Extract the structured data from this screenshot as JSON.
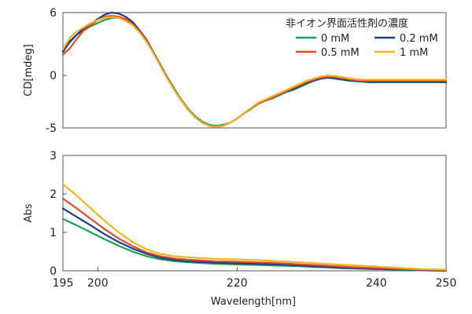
{
  "chart_data": [
    {
      "type": "line",
      "panel": "top",
      "xlabel": "",
      "ylabel": "CD[mdeg]",
      "xlim": [
        195,
        250
      ],
      "ylim": [
        -5,
        6
      ],
      "yticks": [
        6,
        0,
        -5
      ],
      "grid": false,
      "legend_title": "非イオン界面活性剤の濃度",
      "legend_position": "top-right",
      "series": [
        {
          "name": "0 mM",
          "color": "#1aa05a",
          "x": [
            195,
            196,
            197,
            198,
            199,
            200,
            201,
            202,
            203,
            204,
            205,
            206,
            207,
            208,
            209,
            210,
            211,
            212,
            213,
            214,
            215,
            216,
            217,
            218,
            219,
            220,
            221,
            222,
            223,
            224,
            225,
            226,
            227,
            228,
            229,
            230,
            231,
            232,
            233,
            234,
            235,
            236,
            237,
            238,
            239,
            240,
            241,
            242,
            243,
            244,
            245,
            246,
            247,
            248,
            249,
            250
          ],
          "y": [
            2.2,
            3.3,
            3.9,
            4.3,
            4.7,
            5.0,
            5.3,
            5.5,
            5.5,
            5.3,
            4.9,
            4.2,
            3.3,
            2.2,
            1.0,
            -0.2,
            -1.3,
            -2.3,
            -3.2,
            -3.9,
            -4.4,
            -4.7,
            -4.8,
            -4.7,
            -4.5,
            -4.1,
            -3.6,
            -3.2,
            -2.7,
            -2.4,
            -2.2,
            -1.9,
            -1.6,
            -1.4,
            -1.1,
            -0.8,
            -0.5,
            -0.3,
            -0.2,
            -0.3,
            -0.4,
            -0.5,
            -0.55,
            -0.6,
            -0.65,
            -0.65,
            -0.65,
            -0.65,
            -0.65,
            -0.65,
            -0.65,
            -0.65,
            -0.65,
            -0.65,
            -0.65,
            -0.65
          ]
        },
        {
          "name": "0.2 mM",
          "color": "#1f3b8c",
          "x": [
            195,
            196,
            197,
            198,
            199,
            200,
            201,
            202,
            203,
            204,
            205,
            206,
            207,
            208,
            209,
            210,
            211,
            212,
            213,
            214,
            215,
            216,
            217,
            218,
            219,
            220,
            221,
            222,
            223,
            224,
            225,
            226,
            227,
            228,
            229,
            230,
            231,
            232,
            233,
            234,
            235,
            236,
            237,
            238,
            239,
            240,
            241,
            242,
            243,
            244,
            245,
            246,
            247,
            248,
            249,
            250
          ],
          "y": [
            2.3,
            3.2,
            3.9,
            4.5,
            4.9,
            5.4,
            5.8,
            6.0,
            5.9,
            5.6,
            5.1,
            4.3,
            3.4,
            2.2,
            1.0,
            -0.2,
            -1.3,
            -2.4,
            -3.3,
            -4.0,
            -4.5,
            -4.8,
            -4.9,
            -4.8,
            -4.5,
            -4.1,
            -3.6,
            -3.1,
            -2.7,
            -2.4,
            -2.1,
            -1.8,
            -1.5,
            -1.3,
            -1.0,
            -0.7,
            -0.5,
            -0.3,
            -0.2,
            -0.25,
            -0.35,
            -0.45,
            -0.5,
            -0.55,
            -0.6,
            -0.6,
            -0.6,
            -0.6,
            -0.6,
            -0.6,
            -0.6,
            -0.6,
            -0.6,
            -0.6,
            -0.6,
            -0.6
          ]
        },
        {
          "name": "0.5 mM",
          "color": "#e04a2a",
          "x": [
            195,
            196,
            197,
            198,
            199,
            200,
            201,
            202,
            203,
            204,
            205,
            206,
            207,
            208,
            209,
            210,
            211,
            212,
            213,
            214,
            215,
            216,
            217,
            218,
            219,
            220,
            221,
            222,
            223,
            224,
            225,
            226,
            227,
            228,
            229,
            230,
            231,
            232,
            233,
            234,
            235,
            236,
            237,
            238,
            239,
            240,
            241,
            242,
            243,
            244,
            245,
            246,
            247,
            248,
            249,
            250
          ],
          "y": [
            2.0,
            2.6,
            3.5,
            4.3,
            4.8,
            5.3,
            5.6,
            5.7,
            5.6,
            5.4,
            4.9,
            4.2,
            3.3,
            2.1,
            0.9,
            -0.3,
            -1.4,
            -2.4,
            -3.3,
            -4.0,
            -4.5,
            -4.8,
            -4.9,
            -4.8,
            -4.5,
            -4.1,
            -3.6,
            -3.1,
            -2.7,
            -2.4,
            -2.1,
            -1.8,
            -1.5,
            -1.2,
            -0.9,
            -0.6,
            -0.4,
            -0.2,
            -0.1,
            -0.15,
            -0.25,
            -0.35,
            -0.45,
            -0.5,
            -0.5,
            -0.5,
            -0.5,
            -0.5,
            -0.5,
            -0.5,
            -0.5,
            -0.5,
            -0.5,
            -0.5,
            -0.5,
            -0.5
          ]
        },
        {
          "name": "1 mM",
          "color": "#f5b324",
          "x": [
            195,
            196,
            197,
            198,
            199,
            200,
            201,
            202,
            203,
            204,
            205,
            206,
            207,
            208,
            209,
            210,
            211,
            212,
            213,
            214,
            215,
            216,
            217,
            218,
            219,
            220,
            221,
            222,
            223,
            224,
            225,
            226,
            227,
            228,
            229,
            230,
            231,
            232,
            233,
            234,
            235,
            236,
            237,
            238,
            239,
            240,
            241,
            242,
            243,
            244,
            245,
            246,
            247,
            248,
            249,
            250
          ],
          "y": [
            2.5,
            3.6,
            4.2,
            4.6,
            5.0,
            5.3,
            5.5,
            5.6,
            5.5,
            5.2,
            4.8,
            4.1,
            3.2,
            2.1,
            0.9,
            -0.3,
            -1.4,
            -2.4,
            -3.3,
            -4.0,
            -4.5,
            -4.8,
            -4.9,
            -4.8,
            -4.5,
            -4.1,
            -3.6,
            -3.1,
            -2.6,
            -2.3,
            -2.0,
            -1.7,
            -1.4,
            -1.1,
            -0.8,
            -0.5,
            -0.3,
            -0.1,
            0.0,
            -0.05,
            -0.15,
            -0.25,
            -0.35,
            -0.4,
            -0.4,
            -0.4,
            -0.4,
            -0.4,
            -0.4,
            -0.4,
            -0.4,
            -0.4,
            -0.4,
            -0.4,
            -0.4,
            -0.4
          ]
        }
      ]
    },
    {
      "type": "line",
      "panel": "bottom",
      "xlabel": "Wavelength[nm]",
      "ylabel": "Abs",
      "xlim": [
        195,
        250
      ],
      "ylim": [
        0,
        3
      ],
      "yticks": [
        0,
        1,
        2,
        3
      ],
      "xticks": [
        195,
        200,
        220,
        240,
        250
      ],
      "grid": false,
      "series": [
        {
          "name": "0 mM",
          "color": "#1aa05a",
          "x": [
            195,
            197,
            199,
            201,
            203,
            205,
            207,
            209,
            211,
            213,
            215,
            217,
            219,
            221,
            223,
            225,
            227,
            229,
            231,
            233,
            235,
            237,
            239,
            241,
            243,
            245,
            247,
            250
          ],
          "y": [
            1.35,
            1.18,
            1.0,
            0.82,
            0.65,
            0.5,
            0.38,
            0.3,
            0.25,
            0.22,
            0.2,
            0.18,
            0.17,
            0.16,
            0.15,
            0.14,
            0.13,
            0.12,
            0.1,
            0.09,
            0.07,
            0.06,
            0.05,
            0.04,
            0.03,
            0.02,
            0.01,
            0.0
          ]
        },
        {
          "name": "0.2 mM",
          "color": "#1f3b8c",
          "x": [
            195,
            197,
            199,
            201,
            203,
            205,
            207,
            209,
            211,
            213,
            215,
            217,
            219,
            221,
            223,
            225,
            227,
            229,
            231,
            233,
            235,
            237,
            239,
            241,
            243,
            245,
            247,
            250
          ],
          "y": [
            1.62,
            1.4,
            1.18,
            0.95,
            0.75,
            0.58,
            0.44,
            0.34,
            0.28,
            0.25,
            0.23,
            0.21,
            0.2,
            0.19,
            0.18,
            0.17,
            0.16,
            0.14,
            0.12,
            0.1,
            0.08,
            0.07,
            0.06,
            0.05,
            0.04,
            0.03,
            0.02,
            0.01
          ]
        },
        {
          "name": "0.5 mM",
          "color": "#e04a2a",
          "x": [
            195,
            197,
            199,
            201,
            203,
            205,
            207,
            209,
            211,
            213,
            215,
            217,
            219,
            221,
            223,
            225,
            227,
            229,
            231,
            233,
            235,
            237,
            239,
            241,
            243,
            245,
            247,
            250
          ],
          "y": [
            1.88,
            1.62,
            1.35,
            1.08,
            0.84,
            0.64,
            0.48,
            0.38,
            0.32,
            0.29,
            0.27,
            0.25,
            0.24,
            0.23,
            0.22,
            0.21,
            0.19,
            0.17,
            0.15,
            0.13,
            0.11,
            0.09,
            0.08,
            0.07,
            0.05,
            0.04,
            0.03,
            0.02
          ]
        },
        {
          "name": "1 mM",
          "color": "#f5b324",
          "x": [
            195,
            197,
            199,
            201,
            203,
            205,
            207,
            209,
            211,
            213,
            215,
            217,
            219,
            221,
            223,
            225,
            227,
            229,
            231,
            233,
            235,
            237,
            239,
            241,
            243,
            245,
            247,
            250
          ],
          "y": [
            2.25,
            1.95,
            1.62,
            1.3,
            1.0,
            0.75,
            0.56,
            0.44,
            0.38,
            0.35,
            0.33,
            0.31,
            0.3,
            0.29,
            0.28,
            0.26,
            0.24,
            0.22,
            0.2,
            0.18,
            0.16,
            0.14,
            0.12,
            0.1,
            0.08,
            0.06,
            0.04,
            0.03
          ]
        }
      ]
    }
  ]
}
